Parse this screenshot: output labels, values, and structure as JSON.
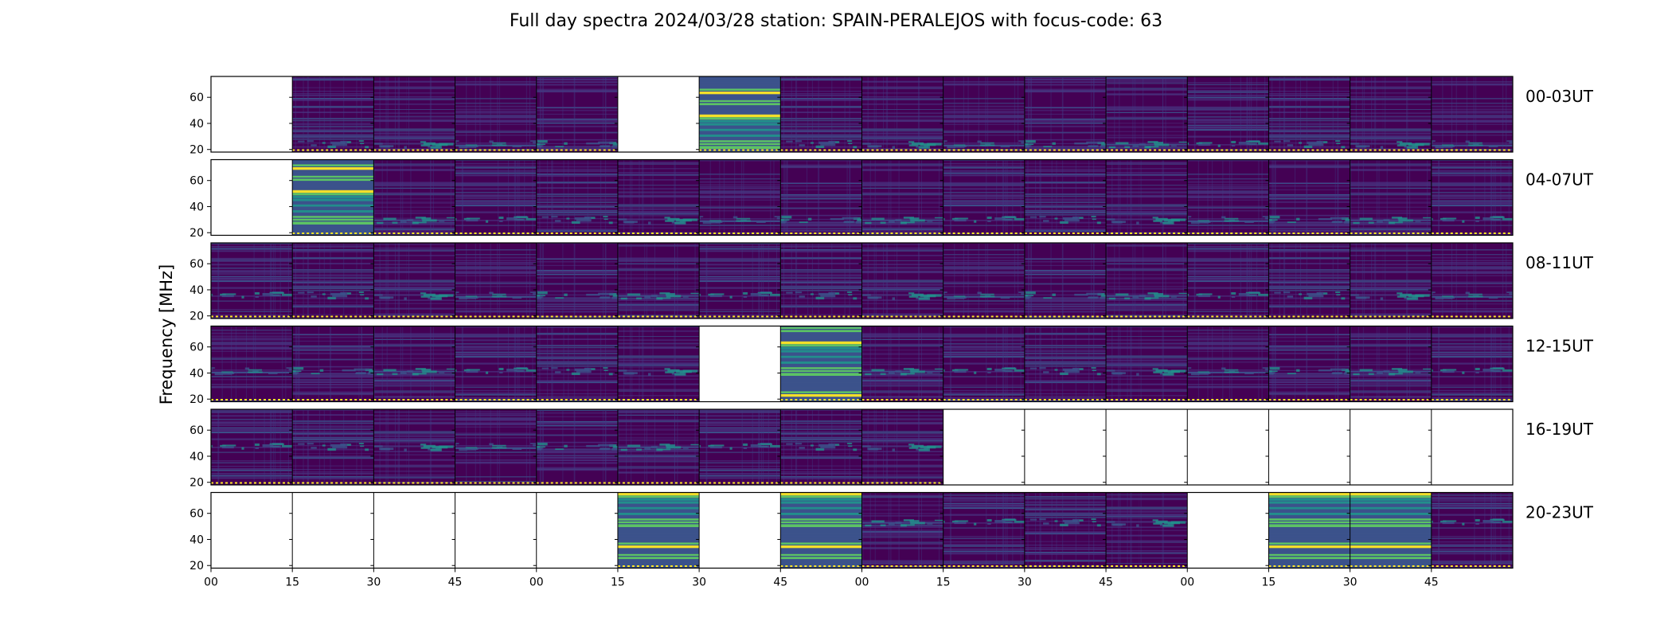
{
  "title": "Full day spectra 2024/03/28 station: SPAIN-PERALEJOS with focus-code: 63",
  "chart_data": {
    "type": "heatmap",
    "title": "Full day spectra 2024/03/28 station: SPAIN-PERALEJOS with focus-code: 63",
    "ylabel": "Frequency [MHz]",
    "xlabel": "",
    "ylim": [
      18,
      76
    ],
    "yticks": [
      20,
      40,
      60
    ],
    "xticks": [
      "00",
      "15",
      "30",
      "45",
      "00",
      "15",
      "30",
      "45",
      "00",
      "15",
      "30",
      "45",
      "00",
      "15",
      "30",
      "45"
    ],
    "colormap": [
      "#440154",
      "#3b528b",
      "#21918c",
      "#5ec962",
      "#fde725"
    ],
    "rows": [
      {
        "label": "00-03UT",
        "panels": [
          "empty",
          "normal",
          "normal",
          "normal",
          "normal",
          "empty",
          "strong",
          "normal",
          "normal",
          "normal",
          "normal",
          "normal",
          "normal",
          "normal",
          "normal",
          "normal"
        ]
      },
      {
        "label": "04-07UT",
        "panels": [
          "empty",
          "strong",
          "normal",
          "normal",
          "normal",
          "normal",
          "normal",
          "normal",
          "normal",
          "normal",
          "normal",
          "normal",
          "normal",
          "normal",
          "normal",
          "normal"
        ]
      },
      {
        "label": "08-11UT",
        "panels": [
          "normal",
          "normal",
          "normal",
          "normal",
          "normal",
          "normal",
          "normal",
          "normal",
          "normal",
          "normal",
          "normal",
          "normal",
          "normal",
          "normal",
          "normal",
          "normal"
        ]
      },
      {
        "label": "12-15UT",
        "panels": [
          "normal",
          "normal",
          "normal",
          "normal",
          "normal",
          "normal",
          "empty",
          "strong",
          "normal",
          "normal",
          "normal",
          "normal",
          "normal",
          "normal",
          "normal",
          "normal"
        ]
      },
      {
        "label": "16-19UT",
        "panels": [
          "normal",
          "normal",
          "normal",
          "normal",
          "normal",
          "normal",
          "normal",
          "normal",
          "normal",
          "empty",
          "empty",
          "empty",
          "empty",
          "empty",
          "empty",
          "empty"
        ]
      },
      {
        "label": "20-23UT",
        "panels": [
          "empty",
          "empty",
          "empty",
          "empty",
          "empty",
          "strong",
          "empty",
          "strong",
          "normal",
          "normal",
          "normal",
          "normal",
          "empty",
          "strong",
          "strong",
          "normal"
        ]
      }
    ]
  }
}
